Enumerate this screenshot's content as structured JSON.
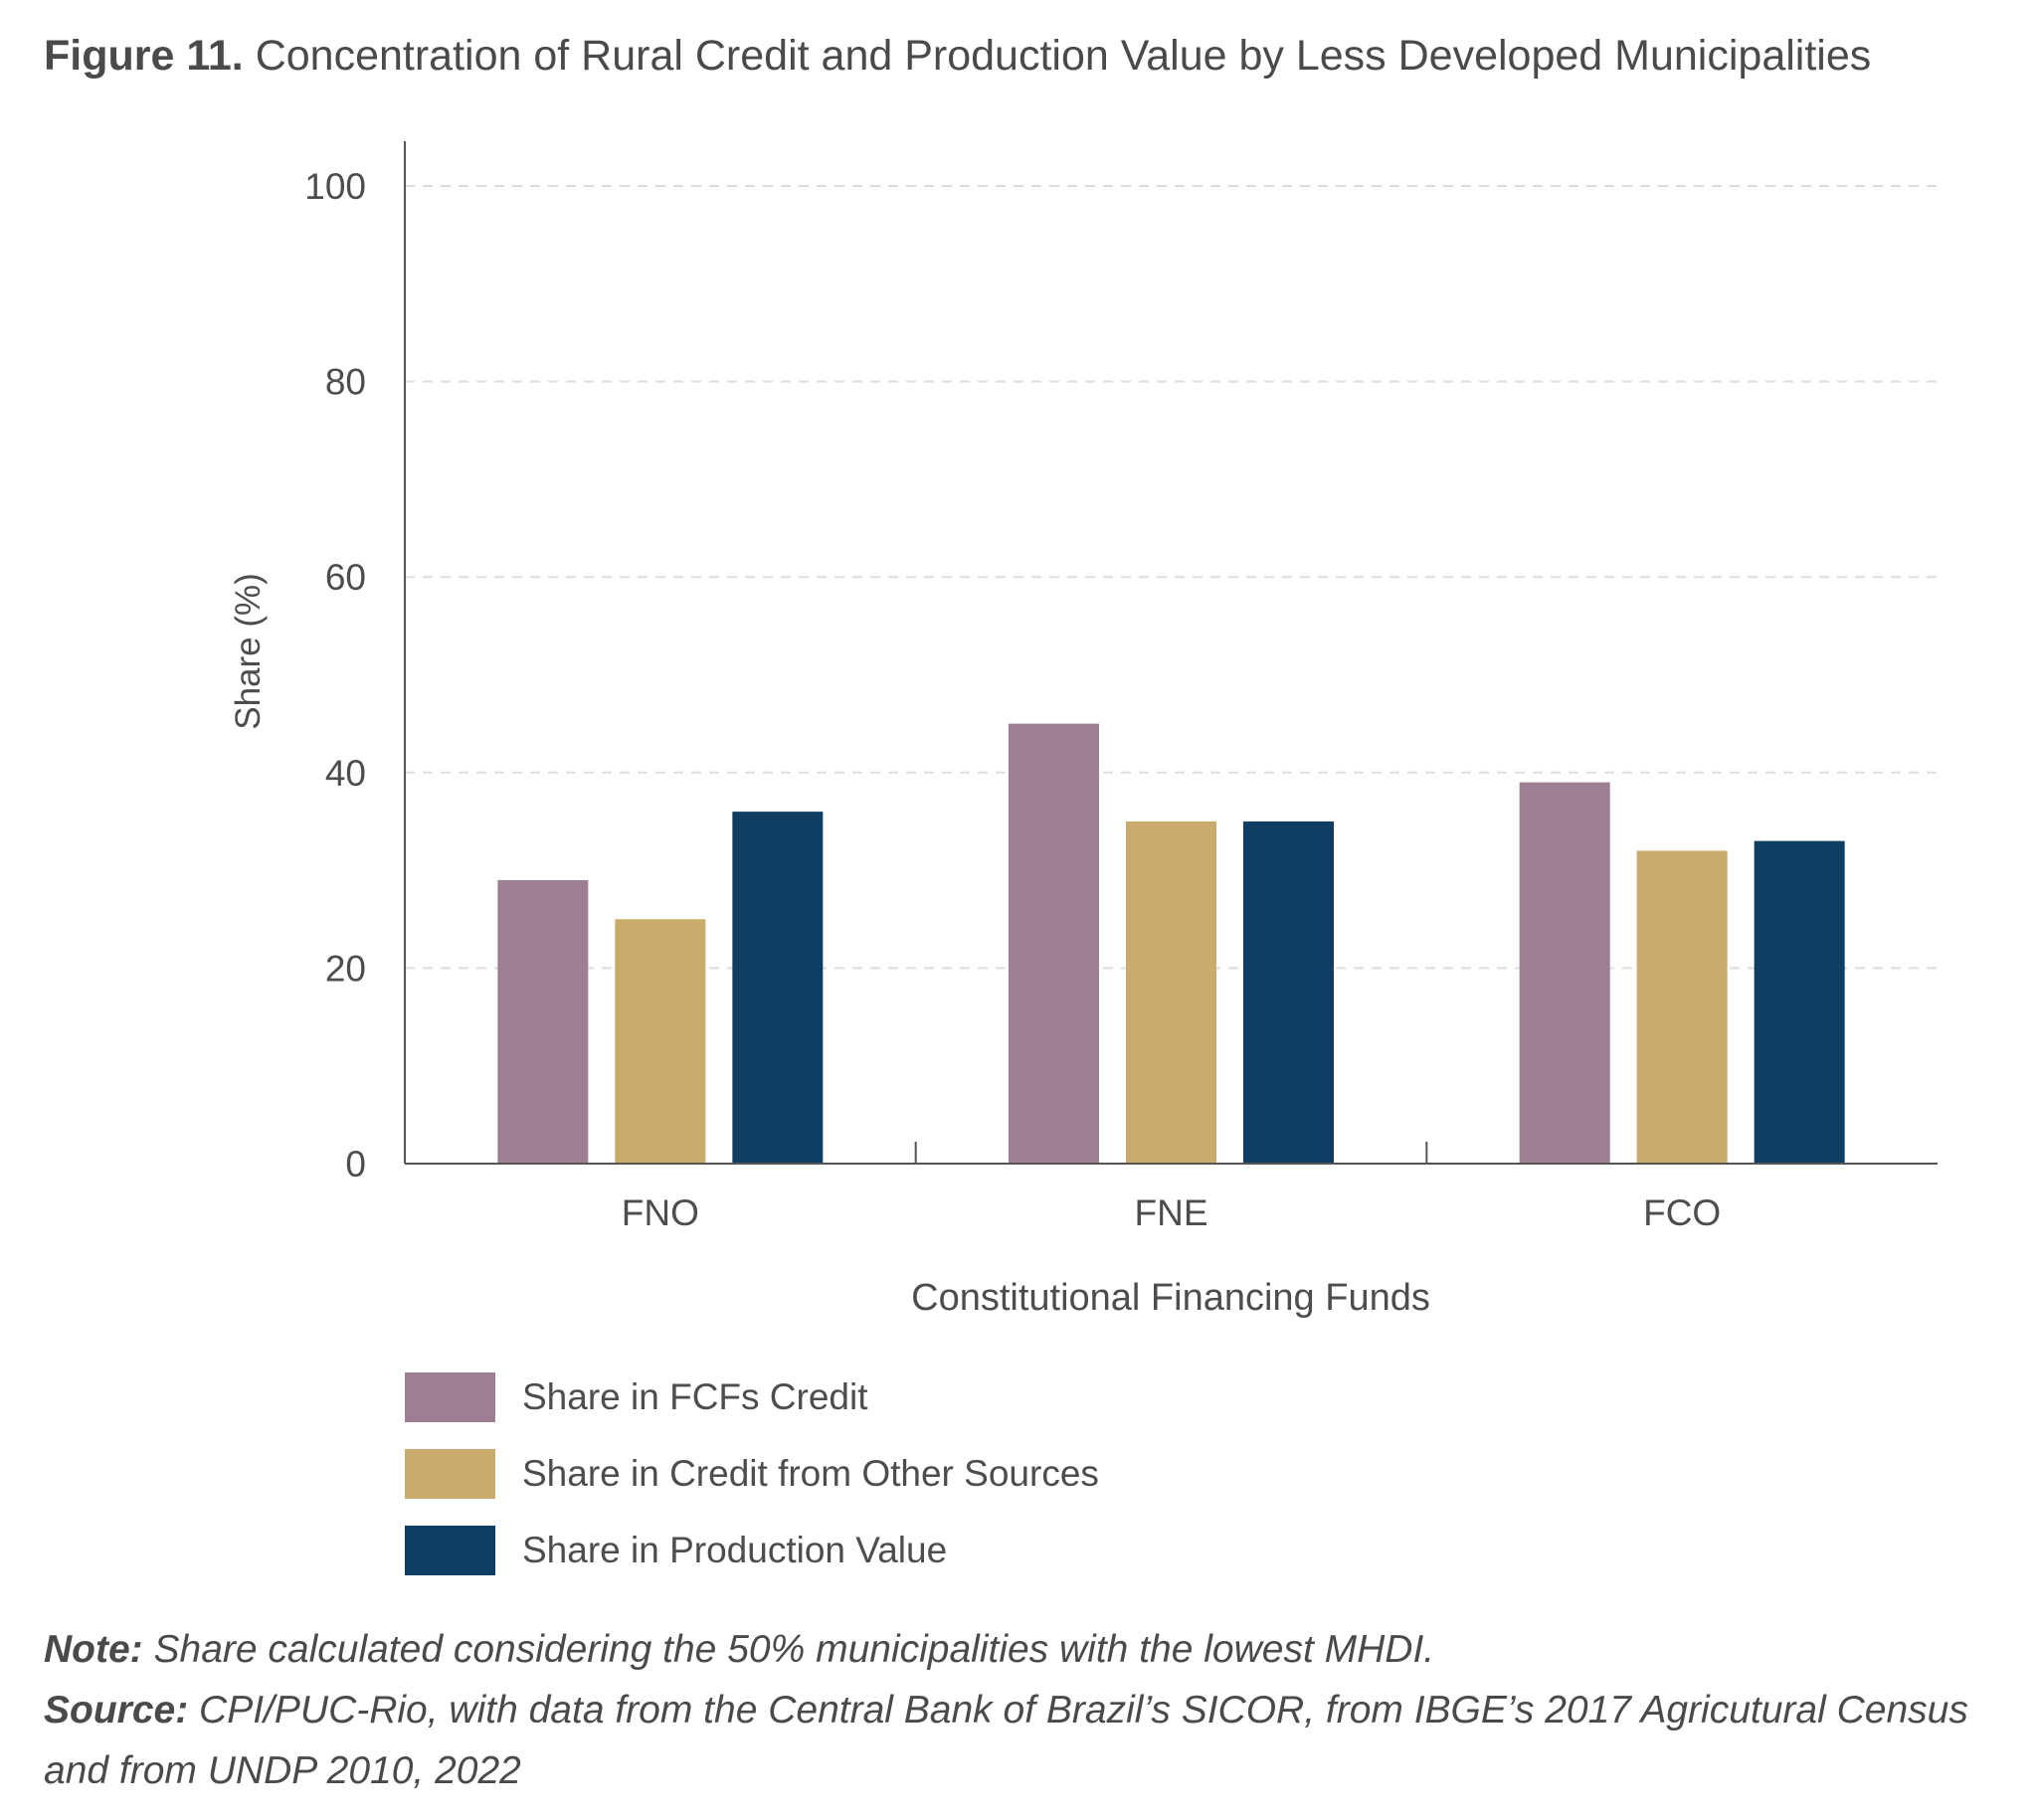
{
  "figure": {
    "label": "Figure 11.",
    "title": "Concentration of Rural Credit and Production Value by Less Developed Municipalities"
  },
  "chart_data": {
    "type": "bar",
    "title": "Concentration of Rural Credit and Production Value by Less Developed Municipalities",
    "xlabel": "Constitutional Financing Funds",
    "ylabel": "Share (%)",
    "ylim": [
      0,
      100
    ],
    "yticks": [
      0,
      20,
      40,
      60,
      80,
      100
    ],
    "grid": true,
    "legend_position": "bottom-left",
    "categories": [
      "FNO",
      "FNE",
      "FCO"
    ],
    "series": [
      {
        "name": "Share in FCFs Credit",
        "color": "#9e7e92",
        "values": [
          29,
          45,
          39
        ]
      },
      {
        "name": "Share in Credit from Other Sources",
        "color": "#c9ab6c",
        "values": [
          25,
          35,
          32
        ]
      },
      {
        "name": "Share in Production Value",
        "color": "#0f3e62",
        "values": [
          36,
          35,
          33
        ]
      }
    ]
  },
  "note": {
    "label": "Note:",
    "text": "Share calculated considering the 50% municipalities with the lowest MHDI."
  },
  "source": {
    "label": "Source:",
    "text": "CPI/PUC-Rio, with data from the Central Bank of Brazil’s SICOR, from IBGE’s 2017 Agricutural Census and from UNDP 2010, 2022"
  }
}
